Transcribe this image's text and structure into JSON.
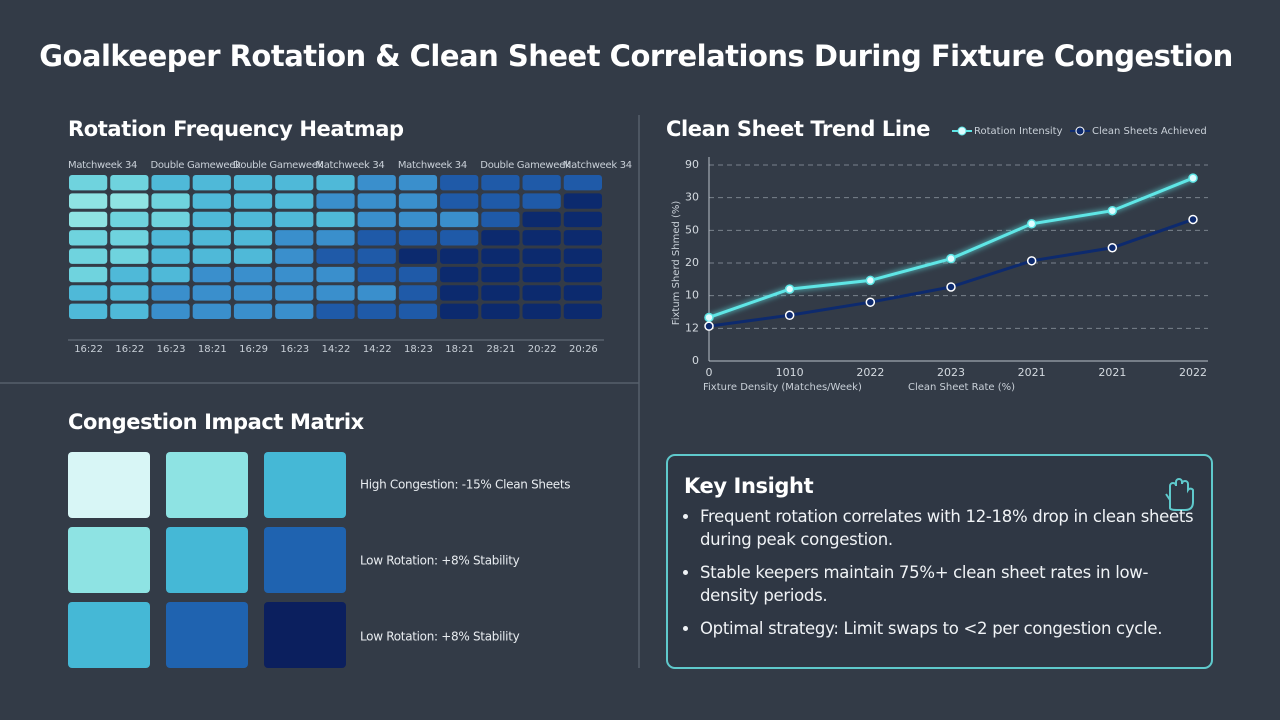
{
  "title": "Goalkeeper Rotation & Clean Sheet Correlations During Fixture Congestion",
  "chart_data": [
    {
      "type": "heatmap",
      "title": "Rotation Frequency Heatmap",
      "column_groups": [
        "Matchweek 34",
        "Double Gameweek",
        "Double Gameweek",
        "Matchweek 34",
        "Matchweek 34",
        "Double Gameweek",
        "Matchweek 34"
      ],
      "categories": [
        "16:22",
        "16:22",
        "16:23",
        "18:21",
        "16:29",
        "16:23",
        "14:22",
        "14:22",
        "18:23",
        "18:21",
        "28:21",
        "20:22",
        "20:26"
      ],
      "colors": [
        "#8fe3e3",
        "#6fd3de",
        "#4fb9d8",
        "#3a8fcc",
        "#1f5aa8",
        "#0c2a6e"
      ],
      "values": [
        [
          2,
          2,
          3,
          3,
          3,
          3,
          3,
          4,
          4,
          5,
          5,
          5,
          5
        ],
        [
          1,
          1,
          2,
          3,
          3,
          3,
          4,
          4,
          4,
          5,
          5,
          5,
          6
        ],
        [
          1,
          2,
          2,
          3,
          3,
          3,
          3,
          4,
          4,
          4,
          5,
          6,
          6
        ],
        [
          2,
          2,
          3,
          3,
          3,
          4,
          4,
          5,
          5,
          5,
          6,
          6,
          6
        ],
        [
          2,
          2,
          3,
          3,
          3,
          4,
          5,
          5,
          6,
          6,
          6,
          6,
          6
        ],
        [
          2,
          3,
          3,
          4,
          4,
          4,
          4,
          5,
          5,
          6,
          6,
          6,
          6
        ],
        [
          3,
          3,
          4,
          4,
          4,
          4,
          4,
          4,
          5,
          6,
          6,
          6,
          6
        ],
        [
          3,
          3,
          4,
          4,
          4,
          4,
          5,
          5,
          5,
          6,
          6,
          6,
          6
        ]
      ]
    },
    {
      "type": "line",
      "title": "Clean Sheet Trend Line",
      "categories": [
        "0",
        "1010",
        "2022",
        "2023",
        "2021",
        "2021",
        "2022"
      ],
      "x_label": "Fixture Density (Matches/Week)",
      "x_label_2": "Clean Sheet Rate (%)",
      "y_label": "Fixtum Sherd Shmed (%)",
      "ylim": [
        0,
        90
      ],
      "yticks": [
        0,
        {
          "value": 15,
          "label": "12"
        },
        {
          "value": 30,
          "label": "10"
        },
        {
          "value": 45,
          "label": "20"
        },
        {
          "value": 60,
          "label": "50"
        },
        {
          "value": 75,
          "label": "30"
        },
        90
      ],
      "grid": true,
      "legend": "top-right",
      "series": [
        {
          "name": "Rotation Intensity",
          "color": "#5ee6e6",
          "values": [
            20,
            33,
            37,
            47,
            63,
            69,
            84
          ]
        },
        {
          "name": "Clean Sheets Achieved",
          "color": "#0d2a6e",
          "values": [
            16,
            21,
            27,
            34,
            46,
            52,
            65
          ]
        }
      ]
    }
  ],
  "matrix": {
    "title": "Congestion Impact Matrix",
    "colors": [
      [
        "#d8f6f6",
        "#8ee3e3",
        "#45b8d6"
      ],
      [
        "#8ee3e3",
        "#45b8d6",
        "#1f63b0"
      ],
      [
        "#45b8d6",
        "#1f63b0",
        "#0b1f5e"
      ]
    ],
    "labels": [
      "High Congestion: -15% Clean Sheets",
      "Low Rotation: +8% Stability",
      "Low Rotation: +8% Stability"
    ]
  },
  "insight": {
    "title": "Key Insight",
    "bullets": [
      "Frequent rotation correlates with 12-18% drop in clean sheets during peak congestion.",
      "Stable keepers maintain 75%+ clean sheet rates in low-density periods.",
      "Optimal strategy: Limit swaps to <2 per congestion cycle."
    ]
  }
}
